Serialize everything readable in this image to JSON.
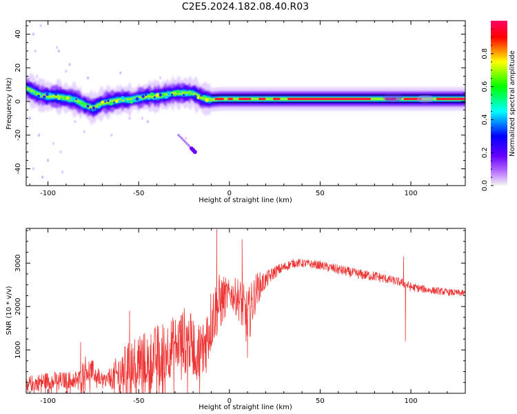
{
  "title": "C2E5.2024.182.08.40.R03",
  "chart_data": [
    {
      "type": "heatmap",
      "xlabel": "Height of straight line (km)",
      "ylabel": "Frequency (Hz)",
      "xlim": [
        -112,
        130
      ],
      "ylim": [
        -50,
        48
      ],
      "xticks": [
        -100,
        -50,
        0,
        50,
        100
      ],
      "yticks": [
        -40,
        -20,
        0,
        20,
        40
      ],
      "ridge": {
        "x": [
          -112,
          -105,
          -100,
          -95,
          -90,
          -85,
          -80,
          -75,
          -70,
          -65,
          -60,
          -55,
          -50,
          -45,
          -40,
          -35,
          -30,
          -25,
          -20,
          -15,
          -10,
          -5,
          0,
          10,
          30,
          50,
          80,
          95,
          110,
          130
        ],
        "y": [
          8,
          4,
          3,
          3,
          2,
          1,
          -2,
          -4,
          -1,
          0,
          1,
          1,
          2,
          3,
          3,
          4,
          5,
          5,
          5,
          2,
          1,
          1.5,
          1.5,
          1.5,
          1.5,
          1.5,
          1.5,
          1.5,
          1.5,
          1.5
        ]
      },
      "colorbar": {
        "label": "Normalized spectral amplitude",
        "ticks": [
          0.0,
          0.2,
          0.4,
          0.6,
          0.8
        ],
        "range": [
          0,
          1
        ],
        "colors": [
          "#f5f5f5",
          "#bb77ff",
          "#6600ff",
          "#0000ff",
          "#00ffff",
          "#00ff00",
          "#ffff00",
          "#ff0000",
          "#ff0066"
        ]
      }
    },
    {
      "type": "line",
      "xlabel": "Height of straight line (km)",
      "ylabel": "SNR (10 * v/v)",
      "xlim": [
        -112,
        130
      ],
      "ylim": [
        0,
        3800
      ],
      "xticks": [
        -100,
        -50,
        0,
        50,
        100
      ],
      "yticks": [
        1000,
        2000,
        3000
      ],
      "color": "#ee3333",
      "envelope": {
        "x": [
          -112,
          -100,
          -90,
          -82,
          -80,
          -75,
          -70,
          -65,
          -60,
          -55,
          -50,
          -45,
          -40,
          -35,
          -30,
          -25,
          -20,
          -15,
          -10,
          -8,
          -5,
          0,
          5,
          10,
          15,
          20,
          25,
          30,
          35,
          40,
          50,
          60,
          70,
          80,
          90,
          95,
          100,
          110,
          120,
          130
        ],
        "mean": [
          200,
          300,
          300,
          350,
          600,
          500,
          300,
          350,
          450,
          700,
          800,
          800,
          900,
          1000,
          1100,
          1300,
          1100,
          900,
          1700,
          1900,
          2100,
          2300,
          2200,
          1700,
          2400,
          2600,
          2800,
          2900,
          3000,
          3000,
          2950,
          2850,
          2750,
          2700,
          2600,
          2550,
          2450,
          2380,
          2330,
          2300
        ],
        "spread": [
          200,
          200,
          200,
          200,
          300,
          250,
          150,
          250,
          600,
          500,
          700,
          600,
          700,
          700,
          700,
          700,
          700,
          800,
          800,
          700,
          700,
          300,
          500,
          700,
          400,
          200,
          150,
          120,
          100,
          100,
          100,
          120,
          120,
          120,
          100,
          100,
          100,
          90,
          80,
          80
        ]
      },
      "spikes": [
        {
          "x": -82,
          "y": 1180
        },
        {
          "x": -55,
          "y": 1900
        },
        {
          "x": -7,
          "y": 3780
        },
        {
          "x": 7,
          "y": 3550
        },
        {
          "x": 10,
          "y": 820
        },
        {
          "x": 96,
          "y": 3150
        },
        {
          "x": 97,
          "y": 1200
        }
      ]
    }
  ]
}
